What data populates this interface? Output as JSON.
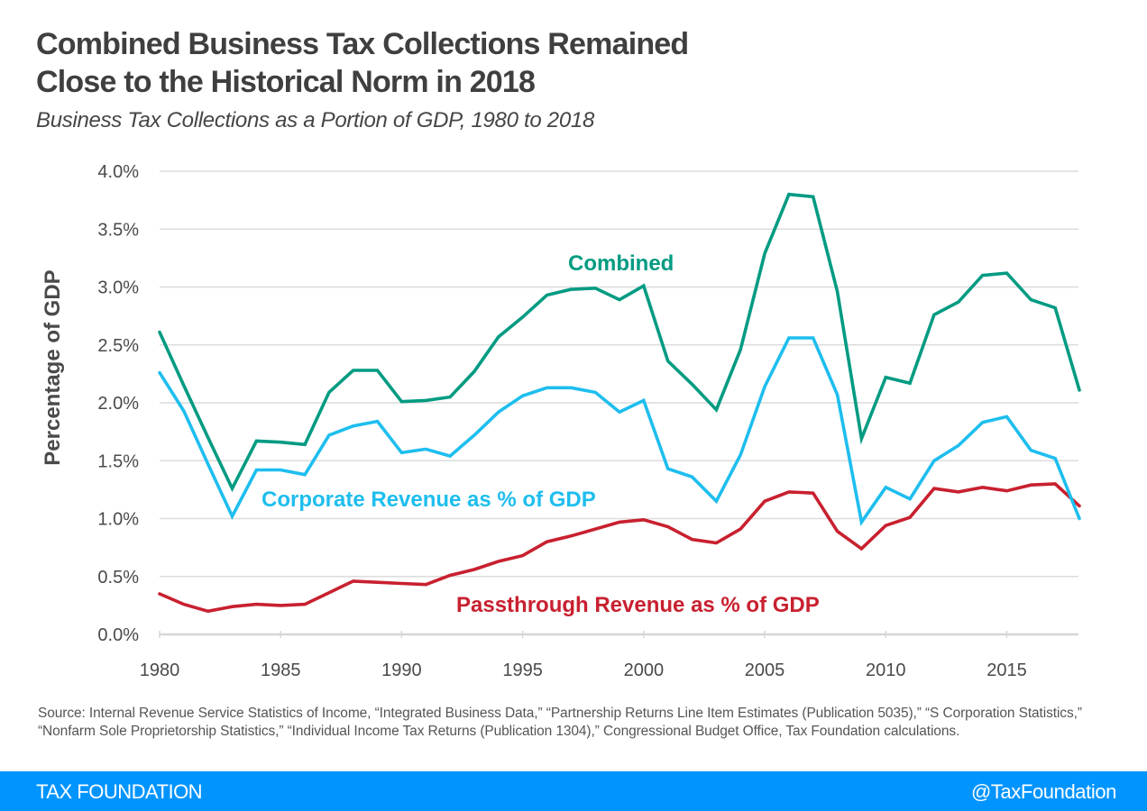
{
  "header": {
    "title_line1": "Combined Business Tax Collections Remained",
    "title_line2": "Close to the Historical Norm in 2018",
    "subtitle": "Business Tax Collections as a Portion of GDP,  1980 to 2018"
  },
  "chart_data": {
    "type": "line",
    "title": "Combined Business Tax Collections Remained Close to the Historical Norm in 2018",
    "subtitle": "Business Tax Collections as a Portion of GDP,  1980 to 2018",
    "xlabel": "",
    "ylabel": "Percentage of GDP",
    "xlim": [
      1980,
      2018
    ],
    "ylim": [
      0,
      4.0
    ],
    "grid": true,
    "legend": "inline labels",
    "x": [
      1980,
      1981,
      1982,
      1983,
      1984,
      1985,
      1986,
      1987,
      1988,
      1989,
      1990,
      1991,
      1992,
      1993,
      1994,
      1995,
      1996,
      1997,
      1998,
      1999,
      2000,
      2001,
      2002,
      2003,
      2004,
      2005,
      2006,
      2007,
      2008,
      2009,
      2010,
      2011,
      2012,
      2013,
      2014,
      2015,
      2016,
      2017,
      2018
    ],
    "x_ticks": [
      1980,
      1985,
      1990,
      1995,
      2000,
      2005,
      2010,
      2015
    ],
    "x_tick_labels": [
      "1980",
      "1985",
      "1990",
      "1995",
      "2000",
      "2005",
      "2010",
      "2015"
    ],
    "y_ticks": [
      0,
      0.5,
      1.0,
      1.5,
      2.0,
      2.5,
      3.0,
      3.5,
      4.0
    ],
    "y_tick_labels": [
      "0.0%",
      "0.5%",
      "1.0%",
      "1.5%",
      "2.0%",
      "2.5%",
      "3.0%",
      "3.5%",
      "4.0%"
    ],
    "series": [
      {
        "name": "Combined",
        "label": "Combined",
        "color": "#009b82",
        "values": [
          2.61,
          2.15,
          1.7,
          1.26,
          1.67,
          1.66,
          1.64,
          2.09,
          2.28,
          2.28,
          2.01,
          2.02,
          2.05,
          2.27,
          2.57,
          2.74,
          2.93,
          2.98,
          2.99,
          2.89,
          3.01,
          2.36,
          2.16,
          1.94,
          2.46,
          3.29,
          3.8,
          3.78,
          2.96,
          1.69,
          2.22,
          2.17,
          2.76,
          2.87,
          3.1,
          3.12,
          2.89,
          2.82,
          2.11
        ]
      },
      {
        "name": "Corporate",
        "label": "Corporate Revenue as % of GDP",
        "color": "#1ebeee",
        "values": [
          2.26,
          1.93,
          1.47,
          1.02,
          1.42,
          1.42,
          1.38,
          1.72,
          1.8,
          1.84,
          1.57,
          1.6,
          1.54,
          1.72,
          1.92,
          2.06,
          2.13,
          2.13,
          2.09,
          1.92,
          2.02,
          1.43,
          1.36,
          1.15,
          1.55,
          2.14,
          2.56,
          2.56,
          2.07,
          0.97,
          1.27,
          1.17,
          1.5,
          1.63,
          1.83,
          1.88,
          1.59,
          1.52,
          1.0
        ]
      },
      {
        "name": "Passthrough",
        "label": "Passthrough Revenue as % of GDP",
        "color": "#c8202f",
        "values": [
          0.35,
          0.26,
          0.2,
          0.24,
          0.26,
          0.25,
          0.26,
          0.36,
          0.46,
          0.45,
          0.44,
          0.43,
          0.51,
          0.56,
          0.63,
          0.68,
          0.8,
          0.85,
          0.91,
          0.97,
          0.99,
          0.93,
          0.82,
          0.79,
          0.91,
          1.15,
          1.23,
          1.22,
          0.89,
          0.74,
          0.94,
          1.01,
          1.26,
          1.23,
          1.27,
          1.24,
          1.29,
          1.3,
          1.11
        ]
      }
    ]
  },
  "source": "Source:  Internal Revenue Service Statistics of Income, “Integrated Business Data,” “Partnership Returns Line Item Estimates (Publication 5035),” “S Corporation Statistics,” “Nonfarm Sole Proprietorship Statistics,” “Individual Income Tax Returns (Publication 1304),” Congressional Budget Office, Tax Foundation calculations.",
  "footer": {
    "brand": "TAX FOUNDATION",
    "handle": "@TaxFoundation",
    "color": "#0094ff"
  }
}
